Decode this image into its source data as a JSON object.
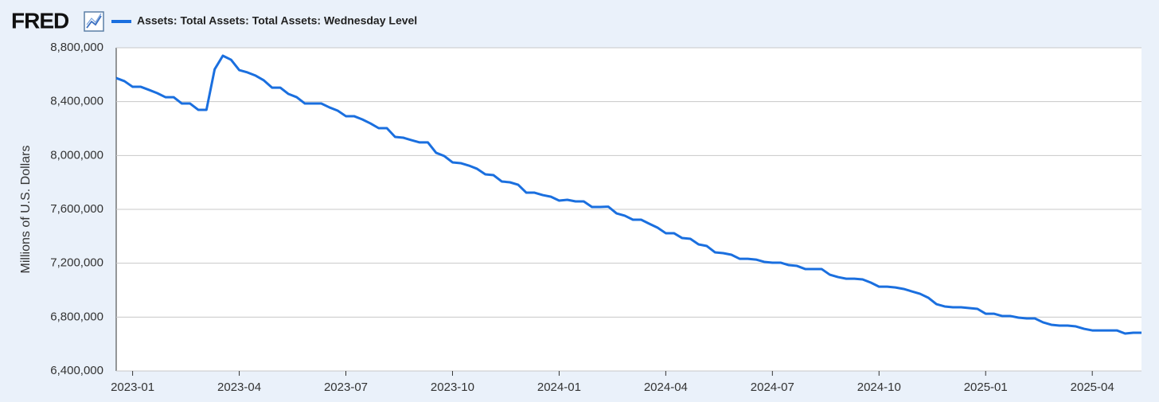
{
  "chart_data": {
    "type": "line",
    "logo": "FRED",
    "ylabel": "Millions of U.S. Dollars",
    "categories": [
      null,
      null,
      "2023-01",
      null,
      null,
      null,
      null,
      null,
      null,
      null,
      null,
      null,
      null,
      null,
      null,
      "2023-04",
      null,
      null,
      null,
      null,
      null,
      null,
      null,
      null,
      null,
      null,
      null,
      null,
      "2023-07",
      null,
      null,
      null,
      null,
      null,
      null,
      null,
      null,
      null,
      null,
      null,
      null,
      "2023-10",
      null,
      null,
      null,
      null,
      null,
      null,
      null,
      null,
      null,
      null,
      null,
      null,
      "2024-01",
      null,
      null,
      null,
      null,
      null,
      null,
      null,
      null,
      null,
      null,
      null,
      null,
      "2024-04",
      null,
      null,
      null,
      null,
      null,
      null,
      null,
      null,
      null,
      null,
      null,
      null,
      "2024-07",
      null,
      null,
      null,
      null,
      null,
      null,
      null,
      null,
      null,
      null,
      null,
      null,
      "2024-10",
      null,
      null,
      null,
      null,
      null,
      null,
      null,
      null,
      null,
      null,
      null,
      null,
      "2025-01",
      null,
      null,
      null,
      null,
      null,
      null,
      null,
      null,
      null,
      null,
      null,
      null,
      "2025-04",
      null,
      null,
      null,
      null,
      null,
      null
    ],
    "series": [
      {
        "name": "Assets: Total Assets: Total Assets: Wednesday Level",
        "color": "#1a6fdf",
        "values": [
          8575000,
          8552000,
          8510000,
          8510000,
          8487000,
          8463000,
          8433000,
          8433000,
          8386000,
          8386000,
          8339000,
          8339000,
          8640000,
          8741000,
          8711000,
          8634000,
          8617000,
          8593000,
          8558000,
          8504000,
          8504000,
          8457000,
          8433000,
          8386000,
          8386000,
          8386000,
          8357000,
          8333000,
          8292000,
          8292000,
          8268000,
          8238000,
          8203000,
          8203000,
          8138000,
          8132000,
          8114000,
          8097000,
          8097000,
          8020000,
          7996000,
          7949000,
          7943000,
          7925000,
          7901000,
          7860000,
          7854000,
          7807000,
          7801000,
          7783000,
          7724000,
          7724000,
          7706000,
          7694000,
          7665000,
          7671000,
          7659000,
          7659000,
          7618000,
          7618000,
          7620000,
          7570000,
          7553000,
          7523000,
          7523000,
          7493000,
          7464000,
          7423000,
          7423000,
          7387000,
          7381000,
          7340000,
          7328000,
          7281000,
          7275000,
          7263000,
          7233000,
          7233000,
          7227000,
          7210000,
          7204000,
          7204000,
          7186000,
          7180000,
          7157000,
          7157000,
          7157000,
          7115000,
          7097000,
          7085000,
          7085000,
          7080000,
          7056000,
          7026000,
          7026000,
          7020000,
          7009000,
          6991000,
          6973000,
          6944000,
          6896000,
          6879000,
          6873000,
          6873000,
          6867000,
          6861000,
          6825000,
          6825000,
          6808000,
          6808000,
          6796000,
          6790000,
          6790000,
          6761000,
          6743000,
          6737000,
          6737000,
          6731000,
          6713000,
          6701000,
          6701000,
          6701000,
          6701000,
          6678000,
          6684000,
          6684000
        ]
      }
    ],
    "ylim": [
      6400000,
      8800000
    ],
    "yticks": [
      {
        "value": 6400000,
        "label": "6,400,000"
      },
      {
        "value": 6800000,
        "label": "6,800,000"
      },
      {
        "value": 7200000,
        "label": "7,200,000"
      },
      {
        "value": 7600000,
        "label": "7,600,000"
      },
      {
        "value": 8000000,
        "label": "8,000,000"
      },
      {
        "value": 8400000,
        "label": "8,400,000"
      },
      {
        "value": 8800000,
        "label": "8,800,000"
      }
    ],
    "grid": true
  }
}
